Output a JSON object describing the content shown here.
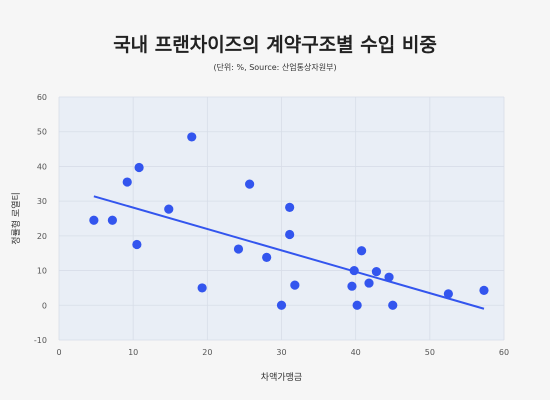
{
  "chart_data": {
    "type": "scatter",
    "title": "국내 프랜차이즈의 계약구조별 수입 비중",
    "subtitle": "(단위: %, Source: 산업통상자원부)",
    "xlabel": "차액가맹금",
    "ylabel": "정률형 로열티",
    "xlim": [
      0,
      60
    ],
    "ylim": [
      -10,
      60
    ],
    "xticks": [
      0,
      10,
      20,
      30,
      40,
      50,
      60
    ],
    "yticks": [
      -10,
      0,
      10,
      20,
      30,
      40,
      50,
      60
    ],
    "grid": true,
    "points": [
      {
        "x": 4.7,
        "y": 24.5
      },
      {
        "x": 7.2,
        "y": 24.5
      },
      {
        "x": 9.2,
        "y": 35.5
      },
      {
        "x": 10.5,
        "y": 17.5
      },
      {
        "x": 10.8,
        "y": 39.7
      },
      {
        "x": 14.8,
        "y": 27.7
      },
      {
        "x": 17.9,
        "y": 48.5
      },
      {
        "x": 19.3,
        "y": 5.0
      },
      {
        "x": 24.2,
        "y": 16.2
      },
      {
        "x": 25.7,
        "y": 34.9
      },
      {
        "x": 28.0,
        "y": 13.8
      },
      {
        "x": 30.0,
        "y": 0.0
      },
      {
        "x": 31.1,
        "y": 28.2
      },
      {
        "x": 31.1,
        "y": 20.4
      },
      {
        "x": 31.8,
        "y": 5.8
      },
      {
        "x": 39.5,
        "y": 5.5
      },
      {
        "x": 39.8,
        "y": 10.0
      },
      {
        "x": 40.2,
        "y": 0.0
      },
      {
        "x": 40.8,
        "y": 15.7
      },
      {
        "x": 41.8,
        "y": 6.4
      },
      {
        "x": 42.8,
        "y": 9.7
      },
      {
        "x": 44.5,
        "y": 8.1
      },
      {
        "x": 45.0,
        "y": 0.0
      },
      {
        "x": 52.5,
        "y": 3.3
      },
      {
        "x": 57.3,
        "y": 4.3
      }
    ],
    "trendline": {
      "x": [
        4.7,
        57.3
      ],
      "y": [
        31.4,
        -1.0
      ]
    },
    "colors": {
      "points": "#3355ee",
      "trendline": "#3355ee",
      "plot_bg": "#e9eef6",
      "grid": "#d7dde8"
    }
  }
}
